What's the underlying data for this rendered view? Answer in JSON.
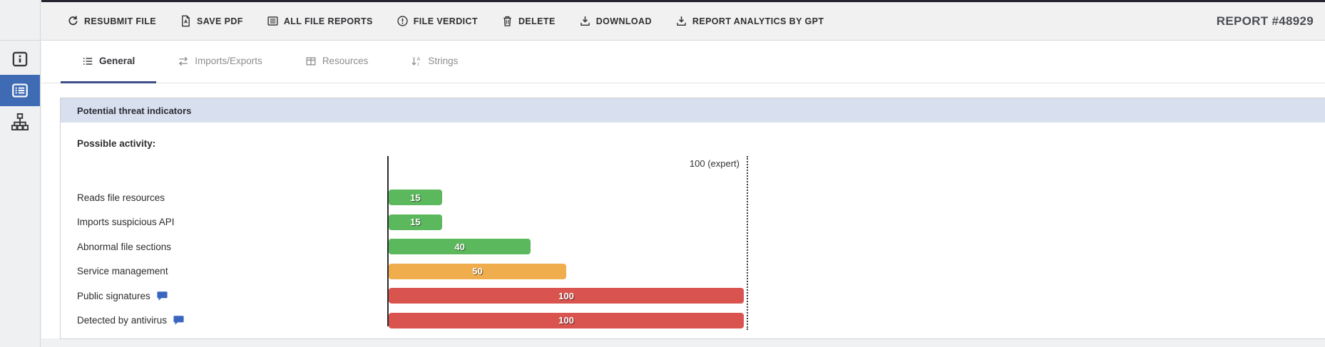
{
  "toolbar": {
    "buttons": [
      {
        "label": "RESUBMIT FILE",
        "icon": "refresh-icon"
      },
      {
        "label": "SAVE PDF",
        "icon": "pdf-file-icon"
      },
      {
        "label": "ALL FILE REPORTS",
        "icon": "list-box-icon"
      },
      {
        "label": "FILE VERDICT",
        "icon": "exclamation-circle-icon"
      },
      {
        "label": "DELETE",
        "icon": "trash-icon"
      },
      {
        "label": "DOWNLOAD",
        "icon": "download-icon"
      },
      {
        "label": "REPORT ANALYTICS BY GPT",
        "icon": "download-icon"
      }
    ],
    "report_number": "REPORT #48929"
  },
  "sidebar": {
    "items": [
      {
        "name": "info",
        "icon": "info-square-icon",
        "active": false
      },
      {
        "name": "report",
        "icon": "report-list-icon",
        "active": true
      },
      {
        "name": "structure",
        "icon": "sitemap-icon",
        "active": false
      }
    ],
    "active_color": "#3f6bb4"
  },
  "tabs": [
    {
      "label": "General",
      "icon": "list-icon",
      "active": true
    },
    {
      "label": "Imports/Exports",
      "icon": "swap-arrows-icon",
      "active": false
    },
    {
      "label": "Resources",
      "icon": "table-icon",
      "active": false
    },
    {
      "label": "Strings",
      "icon": "sort-az-icon",
      "active": false
    }
  ],
  "section": {
    "title": "Potential threat indicators",
    "subtitle": "Possible activity:"
  },
  "chart_data": {
    "type": "bar",
    "orientation": "horizontal",
    "title": "Possible activity:",
    "categories": [
      "Reads file resources",
      "Imports suspicious API",
      "Abnormal file sections",
      "Service management",
      "Public signatures",
      "Detected by antivirus"
    ],
    "values": [
      15,
      15,
      40,
      50,
      100,
      100
    ],
    "colors": [
      "#5cb85c",
      "#5cb85c",
      "#5cb85c",
      "#f0ad4e",
      "#d9534f",
      "#d9534f"
    ],
    "has_comment": [
      false,
      false,
      false,
      false,
      true,
      true
    ],
    "xlim": [
      0,
      100
    ],
    "grid": false,
    "reference_line": {
      "value": 100,
      "label": "100 (expert)"
    },
    "value_labels": "inside-bar"
  },
  "ui_colors": {
    "accent_blue": "#3f6bb4",
    "tab_underline": "#3e4e87",
    "header_bg": "#d8dfee",
    "top_border": "#24252e",
    "comment_icon": "#3a66c0"
  }
}
